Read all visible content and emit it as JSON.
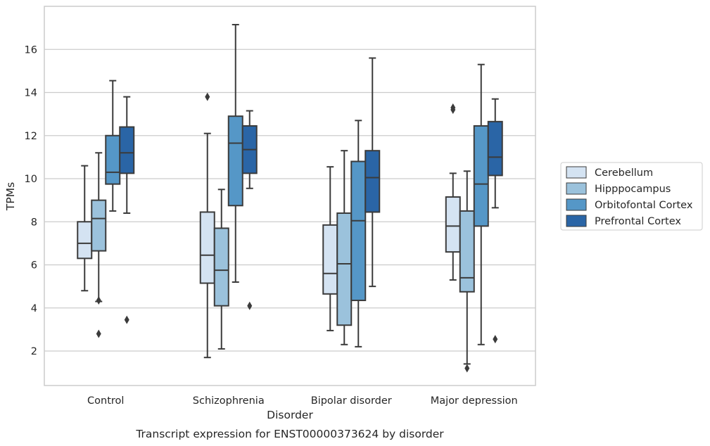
{
  "chart_data": {
    "type": "box",
    "xlabel": "Disorder",
    "ylabel": "TPMs",
    "caption": "Transcript expression for ENST00000373624 by disorder",
    "ylim": [
      0.4,
      18.0
    ],
    "yticks": [
      "2",
      "4",
      "6",
      "8",
      "10",
      "12",
      "14",
      "16"
    ],
    "grid": "horizontal",
    "legend_position": "right",
    "categories": [
      "Control",
      "Schizophrenia",
      "Bipolar disorder",
      "Major depression"
    ],
    "series": [
      {
        "name": "Cerebellum",
        "color": "#d4e3f2",
        "boxes": [
          {
            "whislo": 4.8,
            "q1": 6.3,
            "med": 7.0,
            "q3": 8.0,
            "whishi": 10.6,
            "fliers": []
          },
          {
            "whislo": 1.7,
            "q1": 5.15,
            "med": 6.45,
            "q3": 8.45,
            "whishi": 12.1,
            "fliers": [
              13.8
            ]
          },
          {
            "whislo": 2.95,
            "q1": 4.65,
            "med": 5.6,
            "q3": 7.85,
            "whishi": 10.55,
            "fliers": []
          },
          {
            "whislo": 5.3,
            "q1": 6.6,
            "med": 7.8,
            "q3": 9.15,
            "whishi": 10.25,
            "fliers": [
              13.2,
              13.3
            ]
          }
        ]
      },
      {
        "name": "Hipppocampus",
        "color": "#9bc2dc",
        "boxes": [
          {
            "whislo": 4.3,
            "q1": 6.65,
            "med": 8.15,
            "q3": 9.0,
            "whishi": 11.2,
            "fliers": [
              2.8,
              4.35
            ]
          },
          {
            "whislo": 2.1,
            "q1": 4.1,
            "med": 5.75,
            "q3": 7.7,
            "whishi": 9.5,
            "fliers": []
          },
          {
            "whislo": 2.3,
            "q1": 3.2,
            "med": 6.05,
            "q3": 8.4,
            "whishi": 11.3,
            "fliers": []
          },
          {
            "whislo": 1.4,
            "q1": 4.75,
            "med": 5.4,
            "q3": 8.5,
            "whishi": 10.35,
            "fliers": [
              1.2
            ]
          }
        ]
      },
      {
        "name": "Orbitofontal Cortex",
        "color": "#5597c7",
        "boxes": [
          {
            "whislo": 8.5,
            "q1": 9.75,
            "med": 10.3,
            "q3": 12.0,
            "whishi": 14.55,
            "fliers": []
          },
          {
            "whislo": 5.2,
            "q1": 8.75,
            "med": 11.65,
            "q3": 12.9,
            "whishi": 17.15,
            "fliers": []
          },
          {
            "whislo": 2.2,
            "q1": 4.35,
            "med": 8.05,
            "q3": 10.8,
            "whishi": 12.7,
            "fliers": []
          },
          {
            "whislo": 2.3,
            "q1": 7.8,
            "med": 9.75,
            "q3": 12.45,
            "whishi": 15.3,
            "fliers": []
          }
        ]
      },
      {
        "name": "Prefrontal Cortex",
        "color": "#2a65a6",
        "boxes": [
          {
            "whislo": 8.4,
            "q1": 10.25,
            "med": 11.2,
            "q3": 12.4,
            "whishi": 13.8,
            "fliers": [
              3.45
            ]
          },
          {
            "whislo": 9.55,
            "q1": 10.25,
            "med": 11.35,
            "q3": 12.45,
            "whishi": 13.15,
            "fliers": [
              4.1
            ]
          },
          {
            "whislo": 5.0,
            "q1": 8.45,
            "med": 10.05,
            "q3": 11.3,
            "whishi": 15.6,
            "fliers": []
          },
          {
            "whislo": 8.65,
            "q1": 10.15,
            "med": 11.0,
            "q3": 12.65,
            "whishi": 13.7,
            "fliers": [
              2.55
            ]
          }
        ]
      }
    ]
  }
}
